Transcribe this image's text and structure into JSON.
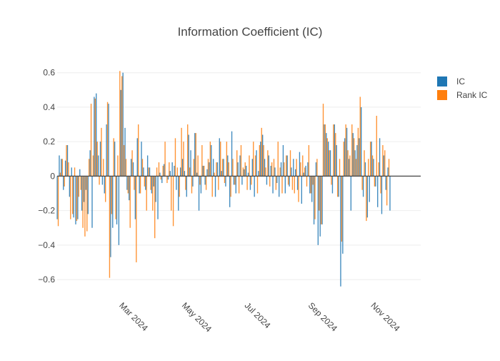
{
  "chart_data": {
    "type": "bar",
    "title": "Information Coefficient (IC)",
    "xlabel": "",
    "ylabel": "",
    "ylim": [
      -0.72,
      0.69
    ],
    "x_range": [
      "2024-01-01",
      "2024-12-20"
    ],
    "y_ticks": [
      -0.6,
      -0.4,
      -0.2,
      0,
      0.2,
      0.4,
      0.6
    ],
    "y_tick_labels": [
      "−0.6",
      "−0.4",
      "−0.2",
      "0",
      "0.2",
      "0.4",
      "0.6"
    ],
    "x_ticks": [
      "2024-03-01",
      "2024-05-01",
      "2024-07-01",
      "2024-09-01",
      "2024-11-01"
    ],
    "x_tick_labels": [
      "Mar 2024",
      "May 2024",
      "Jul 2024",
      "Sep 2024",
      "Nov 2024"
    ],
    "grid": true,
    "legend_position": "top-right",
    "start_date": "2024-01-01",
    "series": [
      {
        "name": "IC",
        "color": "#1f77b4",
        "values": [
          -0.25,
          0.12,
          0.1,
          -0.08,
          0.09,
          0.18,
          -0.12,
          0.05,
          -0.24,
          -0.28,
          -0.25,
          0.04,
          -0.2,
          -0.15,
          -0.08,
          -0.22,
          0.15,
          -0.3,
          0.46,
          0.48,
          0.12,
          0.2,
          -0.05,
          -0.1,
          0.3,
          0.42,
          -0.47,
          -0.3,
          0.2,
          -0.28,
          -0.4,
          0.5,
          0.6,
          0.28,
          -0.08,
          -0.14,
          0.1,
          0.08,
          -0.25,
          0.22,
          -0.1,
          0.2,
          0.05,
          -0.08,
          0.12,
          0.05,
          -0.1,
          -0.06,
          -0.15,
          -0.25,
          0.02,
          -0.04,
          0.07,
          0.0,
          -0.02,
          0.03,
          0.08,
          0.06,
          -0.08,
          -0.2,
          0.05,
          0.1,
          0.03,
          -0.12,
          0.24,
          0.15,
          -0.06,
          0.25,
          0.02,
          -0.2,
          -0.1,
          0.06,
          -0.05,
          0.04,
          0.08,
          0.18,
          0.1,
          -0.12,
          0.08,
          0.22,
          0.03,
          0.1,
          -0.06,
          0.12,
          -0.18,
          0.26,
          -0.05,
          -0.1,
          0.08,
          0.12,
          -0.05,
          0.04,
          0.06,
          0.02,
          -0.08,
          0.1,
          -0.12,
          0.15,
          0.03,
          0.2,
          0.24,
          0.1,
          -0.05,
          0.12,
          0.06,
          -0.1,
          0.05,
          -0.04,
          -0.12,
          0.08,
          0.18,
          -0.1,
          0.12,
          -0.06,
          0.05,
          0.1,
          0.04,
          -0.08,
          0.14,
          -0.16,
          0.02,
          0.06,
          0.08,
          -0.1,
          -0.15,
          -0.28,
          0.08,
          -0.4,
          -0.35,
          -0.28,
          0.3,
          0.25,
          0.2,
          0.15,
          -0.1,
          0.3,
          0.18,
          -0.12,
          -0.64,
          -0.45,
          0.22,
          0.28,
          0.1,
          -0.2,
          0.25,
          0.15,
          0.18,
          0.22,
          0.4,
          -0.12,
          0.08,
          -0.24,
          -0.15,
          0.2,
          0.1,
          -0.06,
          -0.18,
          0.22,
          -0.22,
          0.12,
          -0.08,
          0.05,
          -0.2
        ]
      },
      {
        "name": "Rank IC",
        "color": "#ff7f0e",
        "values": [
          -0.29,
          0.02,
          0.1,
          -0.06,
          0.18,
          0.08,
          -0.25,
          -0.22,
          0.05,
          -0.26,
          -0.12,
          -0.08,
          -0.3,
          -0.35,
          -0.32,
          0.1,
          0.42,
          0.12,
          0.45,
          0.2,
          -0.05,
          0.28,
          0.1,
          -0.15,
          0.43,
          -0.59,
          -0.22,
          0.22,
          -0.25,
          0.12,
          0.61,
          0.58,
          0.18,
          0.1,
          -0.1,
          -0.3,
          0.15,
          -0.08,
          -0.5,
          0.3,
          -0.1,
          0.1,
          -0.06,
          -0.2,
          0.05,
          -0.08,
          -0.2,
          -0.36,
          0.05,
          0.08,
          -0.02,
          0.06,
          0.2,
          -0.04,
          0.08,
          -0.2,
          -0.29,
          0.22,
          0.05,
          -0.12,
          0.28,
          0.2,
          -0.08,
          0.3,
          0.05,
          -0.1,
          0.1,
          0.25,
          0.12,
          -0.05,
          0.18,
          0.06,
          -0.08,
          0.1,
          0.2,
          -0.12,
          0.02,
          0.08,
          -0.08,
          0.2,
          0.1,
          -0.04,
          0.2,
          0.08,
          -0.12,
          0.1,
          -0.05,
          0.15,
          -0.1,
          0.18,
          0.05,
          0.08,
          -0.08,
          0.12,
          -0.05,
          0.2,
          0.12,
          -0.1,
          0.18,
          0.28,
          0.18,
          0.05,
          0.15,
          -0.06,
          0.08,
          0.1,
          -0.08,
          0.2,
          0.05,
          -0.1,
          0.08,
          0.12,
          -0.05,
          0.15,
          -0.08,
          -0.1,
          0.1,
          -0.15,
          0.08,
          0.12,
          0.05,
          -0.06,
          0.18,
          -0.1,
          -0.05,
          -0.25,
          0.1,
          -0.2,
          -0.28,
          0.42,
          0.3,
          0.22,
          0.15,
          -0.05,
          0.3,
          0.25,
          -0.12,
          0.1,
          -0.38,
          0.2,
          0.3,
          0.15,
          0.12,
          0.3,
          0.22,
          0.1,
          0.28,
          0.46,
          -0.08,
          0.15,
          -0.26,
          0.1,
          0.2,
          0.12,
          -0.06,
          0.35,
          0.08,
          -0.1,
          0.18,
          0.15,
          -0.17,
          0.1
        ]
      }
    ]
  }
}
